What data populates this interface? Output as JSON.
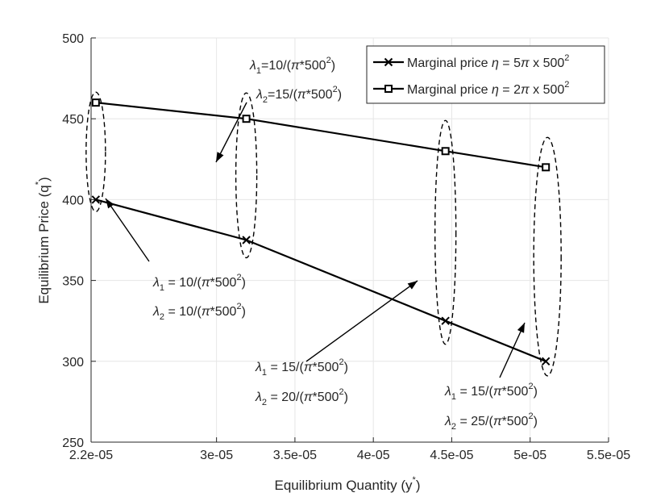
{
  "chart_data": {
    "type": "line",
    "xlabel": "Equilibrium Quantity (y",
    "xlabel_sup": "*",
    "xlabel_close": ")",
    "ylabel": "Equilibrium Price (q",
    "ylabel_sup": "*",
    "ylabel_close": ")",
    "xlim": [
      2.2e-05,
      5.5e-05
    ],
    "ylim": [
      250,
      500
    ],
    "grid": true,
    "x_ticks": [
      {
        "value": 2.2e-05,
        "label": "2.2e-05"
      },
      {
        "value": 3e-05,
        "label": "3e-05"
      },
      {
        "value": 3.5e-05,
        "label": "3.5e-05"
      },
      {
        "value": 4e-05,
        "label": "4e-05"
      },
      {
        "value": 4.5e-05,
        "label": "4.5e-05"
      },
      {
        "value": 5e-05,
        "label": "5e-05"
      },
      {
        "value": 5.5e-05,
        "label": "5.5e-05"
      }
    ],
    "y_ticks": [
      {
        "value": 250,
        "label": "250"
      },
      {
        "value": 300,
        "label": "300"
      },
      {
        "value": 350,
        "label": "350"
      },
      {
        "value": 400,
        "label": "400"
      },
      {
        "value": 450,
        "label": "450"
      },
      {
        "value": 500,
        "label": "500"
      }
    ],
    "series": [
      {
        "name": "Marginal price η = 5π x 500²",
        "legend_prefix": "Marginal price ",
        "legend_eta": "η",
        "legend_eq": " = 5",
        "legend_pi": "π",
        "legend_rest": " x 500",
        "legend_sup": "2",
        "marker": "x",
        "x": [
          2.23e-05,
          3.19e-05,
          4.46e-05,
          5.1e-05
        ],
        "y": [
          400,
          375,
          325,
          300
        ]
      },
      {
        "name": "Marginal price η = 2π x 500²",
        "legend_prefix": "Marginal price ",
        "legend_eta": "η",
        "legend_eq": " = 2",
        "legend_pi": "π",
        "legend_rest": " x 500",
        "legend_sup": "2",
        "marker": "square",
        "x": [
          2.23e-05,
          3.19e-05,
          4.46e-05,
          5.1e-05
        ],
        "y": [
          460,
          450,
          430,
          420
        ]
      }
    ],
    "annotations": [
      {
        "sub": "1",
        "value": "=10/(",
        "pi": "π",
        "rest": "*500",
        "sup": "2",
        "close": ")"
      },
      {
        "sub": "2",
        "value": "=15/(",
        "pi": "π",
        "rest": "*500",
        "sup": "2",
        "close": ")"
      },
      {
        "sub": "1",
        "value": " = 10/(",
        "pi": "π",
        "rest": "*500",
        "sup": "2",
        "close": ")"
      },
      {
        "sub": "2",
        "value": " = 10/(",
        "pi": "π",
        "rest": "*500",
        "sup": "2",
        "close": ")"
      },
      {
        "sub": "1",
        "value": " = 15/(",
        "pi": "π",
        "rest": "*500",
        "sup": "2",
        "close": ")"
      },
      {
        "sub": "2",
        "value": " = 20/(",
        "pi": "π",
        "rest": "*500",
        "sup": "2",
        "close": ")"
      },
      {
        "sub": "1",
        "value": " = 15/(",
        "pi": "π",
        "rest": "*500",
        "sup": "2",
        "close": ")"
      },
      {
        "sub": "2",
        "value": " = 25/(",
        "pi": "π",
        "rest": "*500",
        "sup": "2",
        "close": ")"
      }
    ],
    "lambda_symbol": "λ"
  }
}
